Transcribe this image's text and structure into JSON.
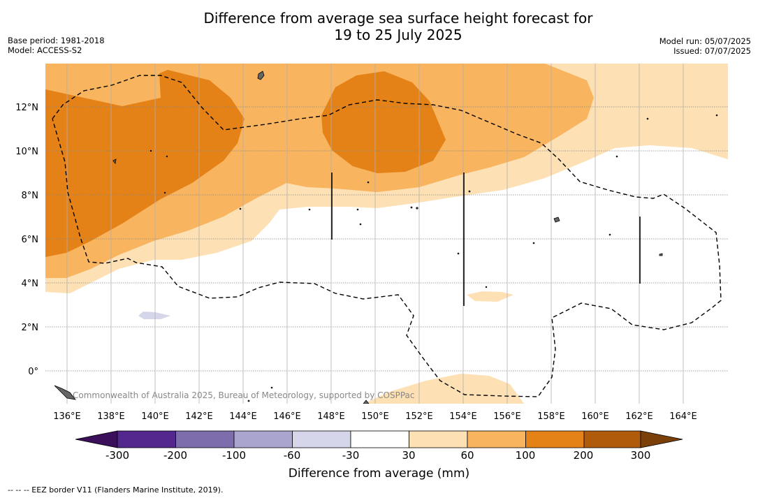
{
  "title_line1": "Difference from average sea surface height forecast for",
  "title_line2": "19 to 25 July 2025",
  "base_period": "Base period: 1981-2018",
  "model": "Model: ACCESS-S2",
  "model_run": "Model run: 05/07/2025",
  "issued": "Issued: 07/07/2025",
  "copyright": "Commonwealth of Australia 2025, Bureau of Meteorology, supported by COSPPac",
  "lat_labels": [
    "12°N",
    "10°N",
    "8°N",
    "6°N",
    "4°N",
    "2°N",
    "0°"
  ],
  "lon_labels": [
    "136°E",
    "138°E",
    "140°E",
    "142°E",
    "144°E",
    "146°E",
    "148°E",
    "150°E",
    "152°E",
    "154°E",
    "156°E",
    "158°E",
    "160°E",
    "162°E",
    "164°E"
  ],
  "colorbar": {
    "title": "Difference from average (mm)",
    "ticks": [
      "-300",
      "-200",
      "-100",
      "-60",
      "-30",
      "30",
      "60",
      "100",
      "200",
      "300"
    ],
    "colors": [
      "#3b0f5a",
      "#54278f",
      "#7d6dad",
      "#aaa5cf",
      "#d6d6ea",
      "#ffffff",
      "#fde0b4",
      "#f8b45e",
      "#e48217",
      "#b05a0c",
      "#7b3f0a"
    ]
  },
  "footnote": "--  --  -- EEZ border V11 (Flanders Marine Institute, 2019)."
}
